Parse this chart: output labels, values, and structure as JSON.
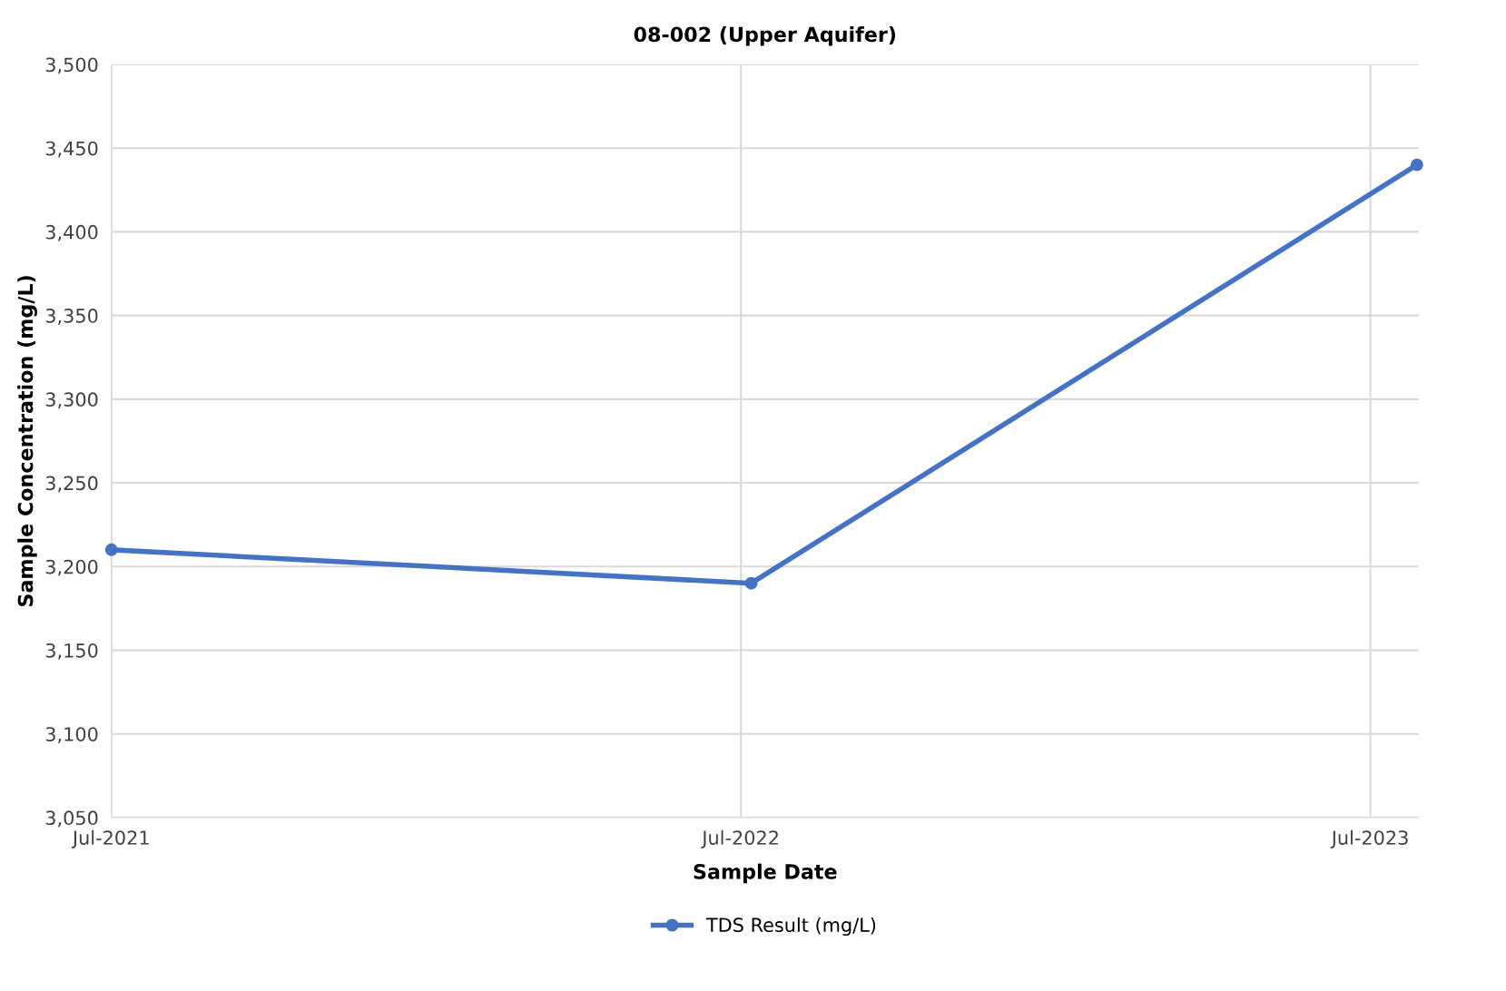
{
  "chart_data": {
    "type": "line",
    "title": "08-002 (Upper Aquifer)",
    "xlabel": "Sample Date",
    "ylabel": "Sample Concentration (mg/L)",
    "x": [
      "2021-07-01",
      "2022-07-07",
      "2023-07-28"
    ],
    "series": [
      {
        "name": "TDS Result (mg/L)",
        "color": "#4472c4",
        "values": [
          3210,
          3190,
          3440
        ]
      }
    ],
    "xlim": [
      "2021-07-01",
      "2023-07-29"
    ],
    "xticks": [
      {
        "value": "2021-07-01",
        "label": "Jul-2021"
      },
      {
        "value": "2022-07-01",
        "label": "Jul-2022"
      },
      {
        "value": "2023-07-01",
        "label": "Jul-2023"
      }
    ],
    "ylim": [
      3050,
      3500
    ],
    "yticks": [
      {
        "value": 3050,
        "label": "3,050"
      },
      {
        "value": 3100,
        "label": "3,100"
      },
      {
        "value": 3150,
        "label": "3,150"
      },
      {
        "value": 3200,
        "label": "3,200"
      },
      {
        "value": 3250,
        "label": "3,250"
      },
      {
        "value": 3300,
        "label": "3,300"
      },
      {
        "value": 3350,
        "label": "3,350"
      },
      {
        "value": 3400,
        "label": "3,400"
      },
      {
        "value": 3450,
        "label": "3,450"
      },
      {
        "value": 3500,
        "label": "3,500"
      }
    ],
    "grid": true,
    "legend": "bottom",
    "marker": "circle",
    "line_style": "solid"
  }
}
